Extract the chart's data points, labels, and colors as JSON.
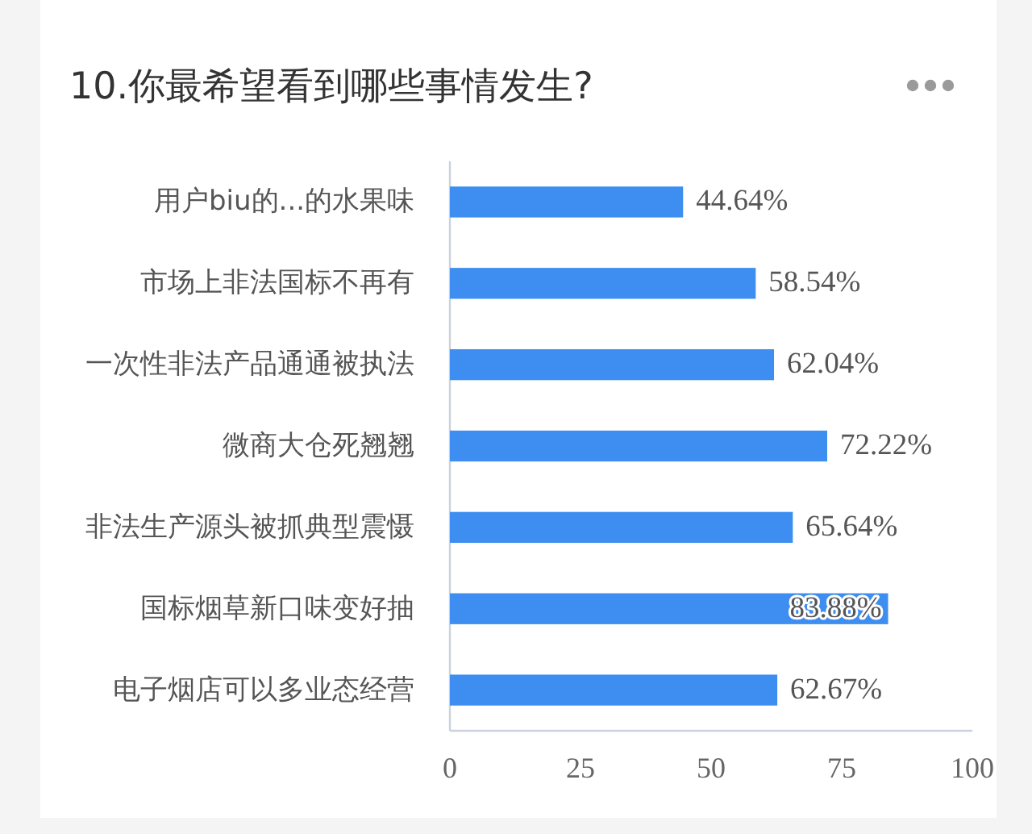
{
  "chart_data": {
    "type": "bar",
    "orientation": "horizontal",
    "title": "10.你最希望看到哪些事情发生?",
    "categories": [
      "用户biu的...的水果味",
      "市场上非法国标不再有",
      "一次性非法产品通通被执法",
      "微商大仓死翘翘",
      "非法生产源头被抓典型震慑",
      "国标烟草新口味变好抽",
      "电子烟店可以多业态经营"
    ],
    "values": [
      44.64,
      58.54,
      62.04,
      72.22,
      65.64,
      83.88,
      62.67
    ],
    "value_labels": [
      "44.64%",
      "58.54%",
      "62.04%",
      "72.22%",
      "65.64%",
      "83.88%",
      "62.67%"
    ],
    "color": "#3d8ef0",
    "xlim": [
      0,
      100
    ],
    "xticks": [
      0,
      25,
      50,
      75,
      100
    ],
    "grid": false
  }
}
